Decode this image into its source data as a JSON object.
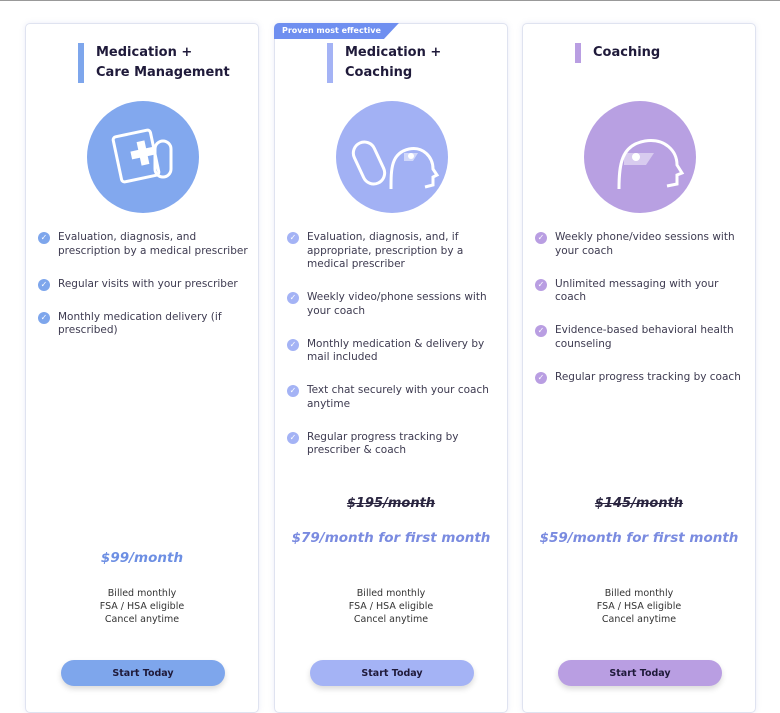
{
  "plans": [
    {
      "badge": "",
      "title": "Medication +\nCare Management",
      "icon": "clipboard-rx-icon",
      "accent": "#7ea6ec",
      "circle": "#82a8ee",
      "features": [
        "Evaluation, diagnosis, and prescription by a medical prescriber",
        "Regular visits with your prescriber",
        "Monthly medication delivery (if prescribed)"
      ],
      "original_price": "",
      "price": "$99/month",
      "price_color": "#6d8fe3",
      "billing": [
        "Billed monthly",
        "FSA / HSA eligible",
        "Cancel anytime"
      ],
      "button": "Start Today"
    },
    {
      "badge": "Proven most effective",
      "title": "Medication +\nCoaching",
      "icon": "pill-brain-icon",
      "accent": "#a4b3f5",
      "circle": "#a2b1f4",
      "features": [
        "Evaluation, diagnosis, and, if appropriate, prescription by a medical prescriber",
        "Weekly video/phone sessions with your coach",
        "Monthly medication & delivery by mail included",
        "Text chat securely with your coach anytime",
        "Regular progress tracking by prescriber & coach"
      ],
      "original_price": "$195/month",
      "price": "$79/month for first month",
      "price_color": "#7a8be0",
      "billing": [
        "Billed monthly",
        "FSA / HSA eligible",
        "Cancel anytime"
      ],
      "button": "Start Today"
    },
    {
      "badge": "",
      "title": "Coaching",
      "icon": "brain-heart-icon",
      "accent": "#b99ee2",
      "circle": "#b8a0e2",
      "features": [
        "Weekly phone/video sessions with your coach",
        "Unlimited messaging with your coach",
        "Evidence-based behavioral health counseling",
        "Regular progress tracking by coach"
      ],
      "original_price": "$145/month",
      "price": "$59/month for first month",
      "price_color": "#7a8be0",
      "billing": [
        "Billed monthly",
        "FSA / HSA eligible",
        "Cancel anytime"
      ],
      "button": "Start Today"
    }
  ],
  "badge_color": "#6f8ff0"
}
